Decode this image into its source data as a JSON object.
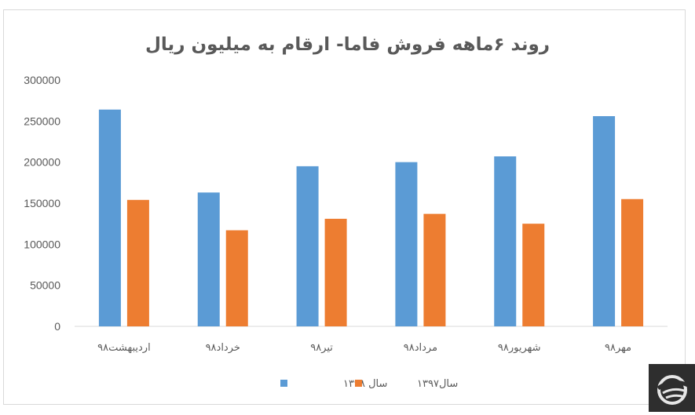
{
  "chart_data": {
    "type": "bar",
    "title": "روند ۶ماهه فروش فاما- ارقام به میلیون ریال",
    "categories": [
      "اردیبهشت۹۸",
      "خرداد۹۸",
      "تیر۹۸",
      "مرداد۹۸",
      "شهریور۹۸",
      "مهر۹۸"
    ],
    "series": [
      {
        "name": "سال ۱۳۹۸",
        "color": "#5B9BD5",
        "values": [
          264000,
          163000,
          195000,
          200000,
          207000,
          256000
        ]
      },
      {
        "name": "سال۱۳۹۷",
        "color": "#ED7D31",
        "values": [
          154000,
          117000,
          131000,
          137000,
          125000,
          155000
        ]
      }
    ],
    "yticks": [
      "0",
      "50000",
      "100000",
      "150000",
      "200000",
      "250000",
      "300000"
    ],
    "ylim": [
      0,
      300000
    ],
    "grid": false,
    "legend_position": "bottom"
  },
  "logo": {
    "icon": "publisher-logo-icon",
    "color": "#2e2e2e"
  }
}
